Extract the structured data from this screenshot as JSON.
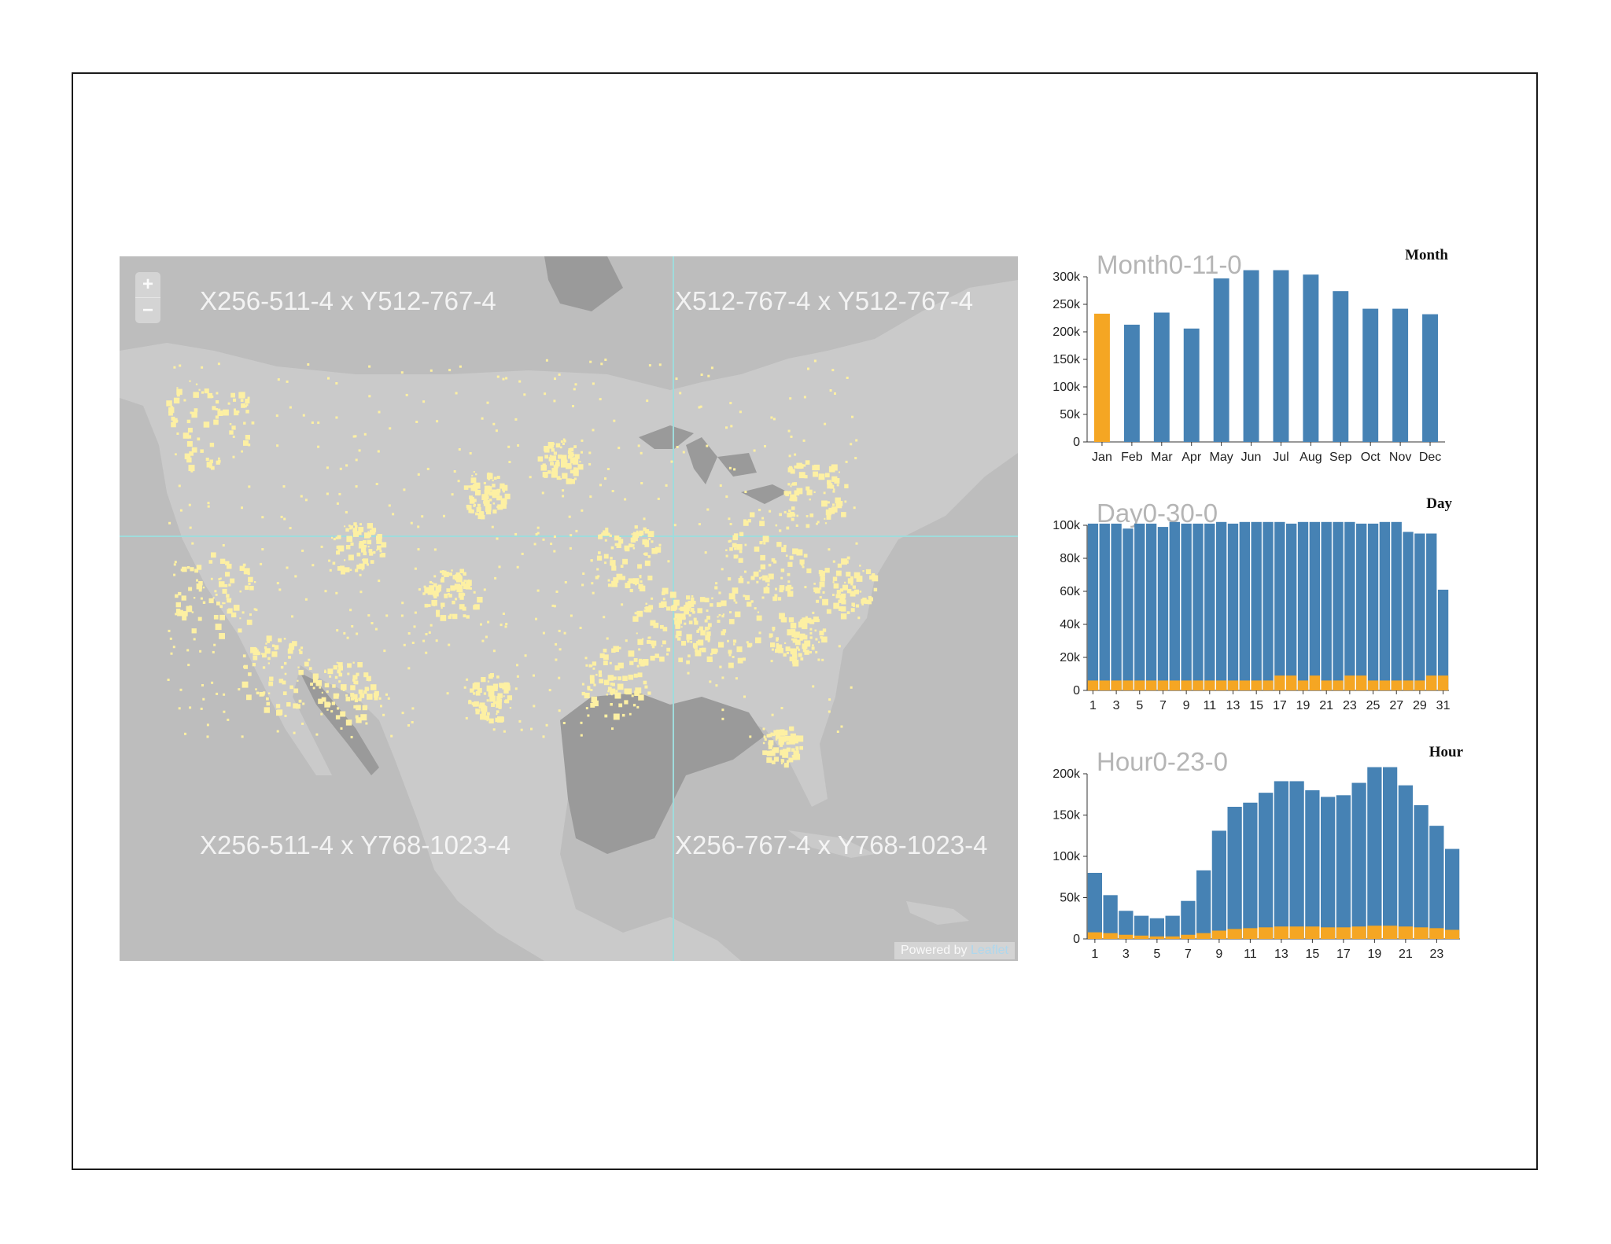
{
  "map": {
    "tile_labels": [
      "X256-511-4 x Y512-767-4",
      "X512-767-4 x Y512-767-4",
      "X256-511-4 x Y768-1023-4",
      "X256-767-4 x Y768-1023-4"
    ],
    "zoom_in": "+",
    "zoom_out": "−",
    "attribution_prefix": "Powered by",
    "attribution_link": "Leaflet"
  },
  "colors": {
    "bar": "#4682b4",
    "highlight": "#f5a623",
    "dots": "#fdf0a3",
    "title": "#b5b5b5"
  },
  "chart_data": [
    {
      "type": "bar",
      "name": "Month",
      "title": "Month0-11-0",
      "categories": [
        "Jan",
        "Feb",
        "Mar",
        "Apr",
        "May",
        "Jun",
        "Jul",
        "Aug",
        "Sep",
        "Oct",
        "Nov",
        "Dec"
      ],
      "values": [
        233000,
        213000,
        235000,
        206000,
        297000,
        312000,
        318000,
        304000,
        274000,
        242000,
        242000,
        232000
      ],
      "highlight_index": 0,
      "ylim": [
        0,
        300000
      ],
      "yticks": [
        "0",
        "50k",
        "100k",
        "150k",
        "200k",
        "250k",
        "300k"
      ]
    },
    {
      "type": "bar",
      "name": "Day",
      "title": "Day0-30-0",
      "categories": [
        "1",
        "2",
        "3",
        "4",
        "5",
        "6",
        "7",
        "8",
        "9",
        "10",
        "11",
        "12",
        "13",
        "14",
        "15",
        "16",
        "17",
        "18",
        "19",
        "20",
        "21",
        "22",
        "23",
        "24",
        "25",
        "26",
        "27",
        "28",
        "29",
        "30",
        "31"
      ],
      "tick_labels": [
        "1",
        "3",
        "5",
        "7",
        "9",
        "11",
        "13",
        "15",
        "17",
        "19",
        "21",
        "23",
        "25",
        "27",
        "29",
        "31"
      ],
      "series": [
        {
          "name": "total",
          "values": [
            101000,
            101000,
            101000,
            98000,
            101000,
            101000,
            99000,
            102000,
            101000,
            101000,
            101000,
            102000,
            101000,
            102000,
            102000,
            102000,
            102000,
            101000,
            102000,
            102000,
            102000,
            102000,
            102000,
            101000,
            101000,
            102000,
            102000,
            96000,
            95000,
            95000,
            61000
          ]
        },
        {
          "name": "selected",
          "values": [
            6000,
            6000,
            6000,
            6000,
            6000,
            6000,
            6000,
            6000,
            6000,
            6000,
            6000,
            6000,
            6000,
            6000,
            6000,
            6000,
            9000,
            9000,
            6000,
            9000,
            6000,
            6000,
            9000,
            9000,
            6000,
            6000,
            6000,
            6000,
            6000,
            9000,
            9000
          ]
        }
      ],
      "ylim": [
        0,
        100000
      ],
      "yticks": [
        "0",
        "20k",
        "40k",
        "60k",
        "80k",
        "100k"
      ]
    },
    {
      "type": "bar",
      "name": "Hour",
      "title": "Hour0-23-0",
      "categories": [
        "1",
        "2",
        "3",
        "4",
        "5",
        "6",
        "7",
        "8",
        "9",
        "10",
        "11",
        "12",
        "13",
        "14",
        "15",
        "16",
        "17",
        "18",
        "19",
        "20",
        "21",
        "22",
        "23",
        "24"
      ],
      "tick_labels": [
        "1",
        "3",
        "5",
        "7",
        "9",
        "11",
        "13",
        "15",
        "17",
        "19",
        "21",
        "23"
      ],
      "series": [
        {
          "name": "total",
          "values": [
            80000,
            53000,
            34000,
            28000,
            25000,
            28000,
            46000,
            83000,
            131000,
            160000,
            165000,
            177000,
            191000,
            191000,
            180000,
            172000,
            174000,
            189000,
            208000,
            208000,
            186000,
            162000,
            137000,
            109000
          ]
        },
        {
          "name": "selected",
          "values": [
            8000,
            7000,
            5000,
            4000,
            3000,
            3000,
            5000,
            7000,
            10000,
            12000,
            13000,
            14000,
            15000,
            15000,
            15000,
            14000,
            14000,
            15000,
            16000,
            16000,
            15000,
            14000,
            13000,
            11000
          ]
        }
      ],
      "ylim": [
        0,
        200000
      ],
      "yticks": [
        "0",
        "50k",
        "100k",
        "150k",
        "200k"
      ]
    }
  ]
}
